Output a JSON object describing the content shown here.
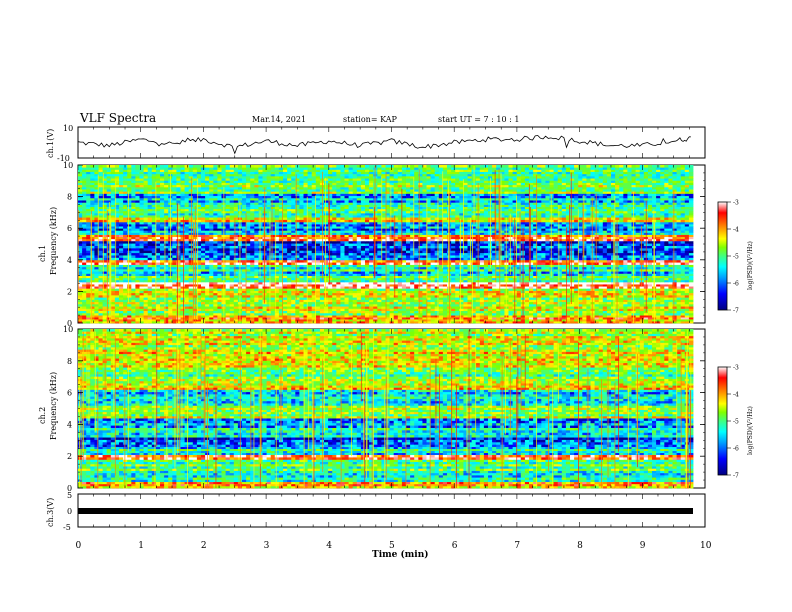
{
  "header": {
    "title": "VLF Spectra",
    "date": "Mar.14, 2021",
    "station": "station= KAP",
    "start_ut": "start  UT =   7 : 10 : 1"
  },
  "colors": {
    "colormap": [
      "#000080",
      "#0000ff",
      "#00a0ff",
      "#00ffff",
      "#40ff80",
      "#80ff00",
      "#ffff00",
      "#ff8000",
      "#ff0000",
      "#ffffff"
    ],
    "trace": "#000000",
    "frame": "#000000"
  },
  "chart_data": [
    {
      "type": "line",
      "panel": "ch1-waveform",
      "ylabel": "ch.1(V)",
      "ylim": [
        -10,
        10
      ],
      "ytick_labels": [
        "10",
        "-10"
      ],
      "xlim": [
        0,
        10
      ],
      "grid": false,
      "x": [
        0.0,
        0.5,
        1.0,
        1.5,
        2.0,
        2.5,
        3.0,
        3.5,
        4.0,
        4.5,
        5.0,
        5.5,
        6.0,
        6.5,
        7.0,
        7.5,
        8.0,
        8.5,
        9.0,
        9.5,
        9.8
      ],
      "y": [
        0,
        -2,
        2,
        -1,
        2,
        -3,
        1,
        -2,
        1,
        -2,
        1,
        -3,
        0,
        2,
        2,
        4,
        1,
        -2,
        -2,
        1,
        3
      ]
    },
    {
      "type": "heatmap",
      "panel": "ch1-spectrogram",
      "ylabel": "ch.1\nFrequency  (kHz)",
      "xlim": [
        0,
        10
      ],
      "ylim": [
        0,
        10
      ],
      "ytick_labels": [
        "0",
        "2",
        "4",
        "6",
        "8",
        "10"
      ],
      "colorbar": {
        "label": "log(PSD)(V²/Hz)",
        "range": [
          -7,
          -3
        ],
        "ticks": [
          "-3",
          "-4",
          "-5",
          "-6",
          "-7"
        ]
      },
      "bands_khz": [
        {
          "from": 0.0,
          "to": 0.5,
          "level": -3.8
        },
        {
          "from": 0.5,
          "to": 2.2,
          "level": -4.6
        },
        {
          "from": 2.2,
          "to": 2.6,
          "level": -3.1
        },
        {
          "from": 2.6,
          "to": 3.0,
          "level": -5.0
        },
        {
          "from": 3.0,
          "to": 3.7,
          "level": -5.6
        },
        {
          "from": 3.7,
          "to": 4.0,
          "level": -3.3
        },
        {
          "from": 4.0,
          "to": 5.2,
          "level": -6.2
        },
        {
          "from": 5.2,
          "to": 5.6,
          "level": -3.6
        },
        {
          "from": 5.6,
          "to": 6.4,
          "level": -6.0
        },
        {
          "from": 6.4,
          "to": 6.7,
          "level": -4.2
        },
        {
          "from": 6.7,
          "to": 7.5,
          "level": -5.2
        },
        {
          "from": 7.5,
          "to": 8.2,
          "level": -5.9
        },
        {
          "from": 8.2,
          "to": 10.0,
          "level": -5.0
        }
      ]
    },
    {
      "type": "heatmap",
      "panel": "ch2-spectrogram",
      "ylabel": "ch.2\nFrequency  (kHz)",
      "xlim": [
        0,
        10
      ],
      "ylim": [
        0,
        10
      ],
      "ytick_labels": [
        "0",
        "2",
        "4",
        "6",
        "8",
        "10"
      ],
      "colorbar": {
        "label": "log(PSD)(V²/Hz)",
        "range": [
          -7,
          -3
        ],
        "ticks": [
          "-3",
          "-4",
          "-5",
          "-6",
          "-7"
        ]
      },
      "bands_khz": [
        {
          "from": 0.0,
          "to": 0.4,
          "level": -4.0
        },
        {
          "from": 0.4,
          "to": 1.8,
          "level": -5.3
        },
        {
          "from": 1.8,
          "to": 2.1,
          "level": -3.8
        },
        {
          "from": 2.1,
          "to": 2.6,
          "level": -5.6
        },
        {
          "from": 2.6,
          "to": 3.2,
          "level": -6.3
        },
        {
          "from": 3.2,
          "to": 3.8,
          "level": -5.4
        },
        {
          "from": 3.8,
          "to": 4.4,
          "level": -6.1
        },
        {
          "from": 4.4,
          "to": 5.2,
          "level": -4.8
        },
        {
          "from": 5.2,
          "to": 6.2,
          "level": -5.8
        },
        {
          "from": 6.2,
          "to": 6.6,
          "level": -4.3
        },
        {
          "from": 6.6,
          "to": 7.6,
          "level": -5.0
        },
        {
          "from": 7.6,
          "to": 10.0,
          "level": -4.6
        }
      ]
    },
    {
      "type": "line",
      "panel": "ch3-trace",
      "ylabel": "ch.3(V)",
      "ylim": [
        -5,
        5
      ],
      "ytick_labels": [
        "5",
        "0",
        "-5"
      ],
      "xlim": [
        0,
        10
      ],
      "xlabel": "Time  (min)",
      "xtick_labels": [
        "0",
        "1",
        "2",
        "3",
        "4",
        "5",
        "6",
        "7",
        "8",
        "9",
        "10"
      ],
      "x": [
        0,
        9.8
      ],
      "y": [
        0,
        0
      ]
    }
  ]
}
